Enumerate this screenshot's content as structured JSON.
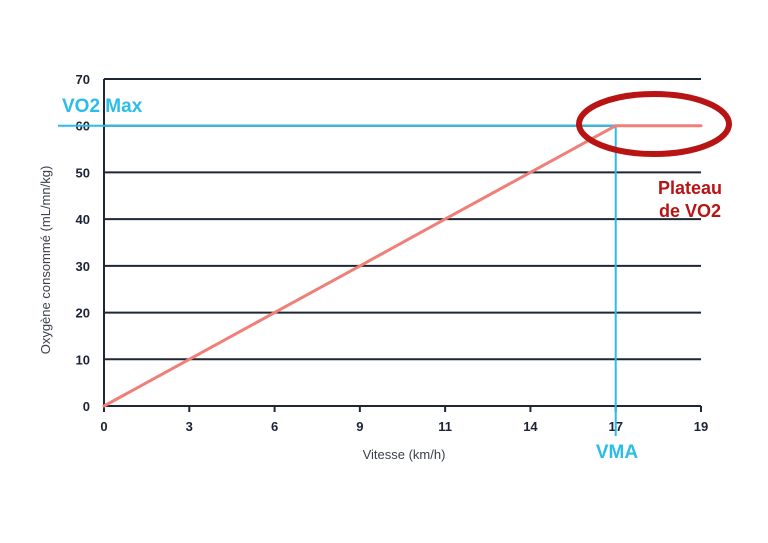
{
  "chart_data": {
    "type": "line",
    "xlabel": "Vitesse (km/h)",
    "ylabel": "Oxygène consommé (mL/mn/kg)",
    "x_ticks": [
      0,
      3,
      6,
      9,
      11,
      14,
      17,
      19
    ],
    "y_ticks": [
      0,
      10,
      20,
      30,
      40,
      50,
      60,
      70
    ],
    "xlim": [
      0,
      19
    ],
    "ylim": [
      0,
      70
    ],
    "grid": "horizontal",
    "series": [
      {
        "color": "#f07f78",
        "points": [
          [
            0,
            0
          ],
          [
            3,
            10
          ],
          [
            6,
            20
          ],
          [
            9,
            30
          ],
          [
            11,
            40
          ],
          [
            14,
            50
          ],
          [
            17,
            60
          ],
          [
            19,
            60
          ]
        ]
      }
    ],
    "reference_lines": {
      "color": "#2bbde8",
      "vo2max_y": 60,
      "vma_x": 17
    },
    "annotations": {
      "vo2max_label": "VO2 Max",
      "vma_label": "VMA",
      "plateau_line1": "Plateau",
      "plateau_line2": "de VO2",
      "plateau_color": "#b81414"
    }
  }
}
